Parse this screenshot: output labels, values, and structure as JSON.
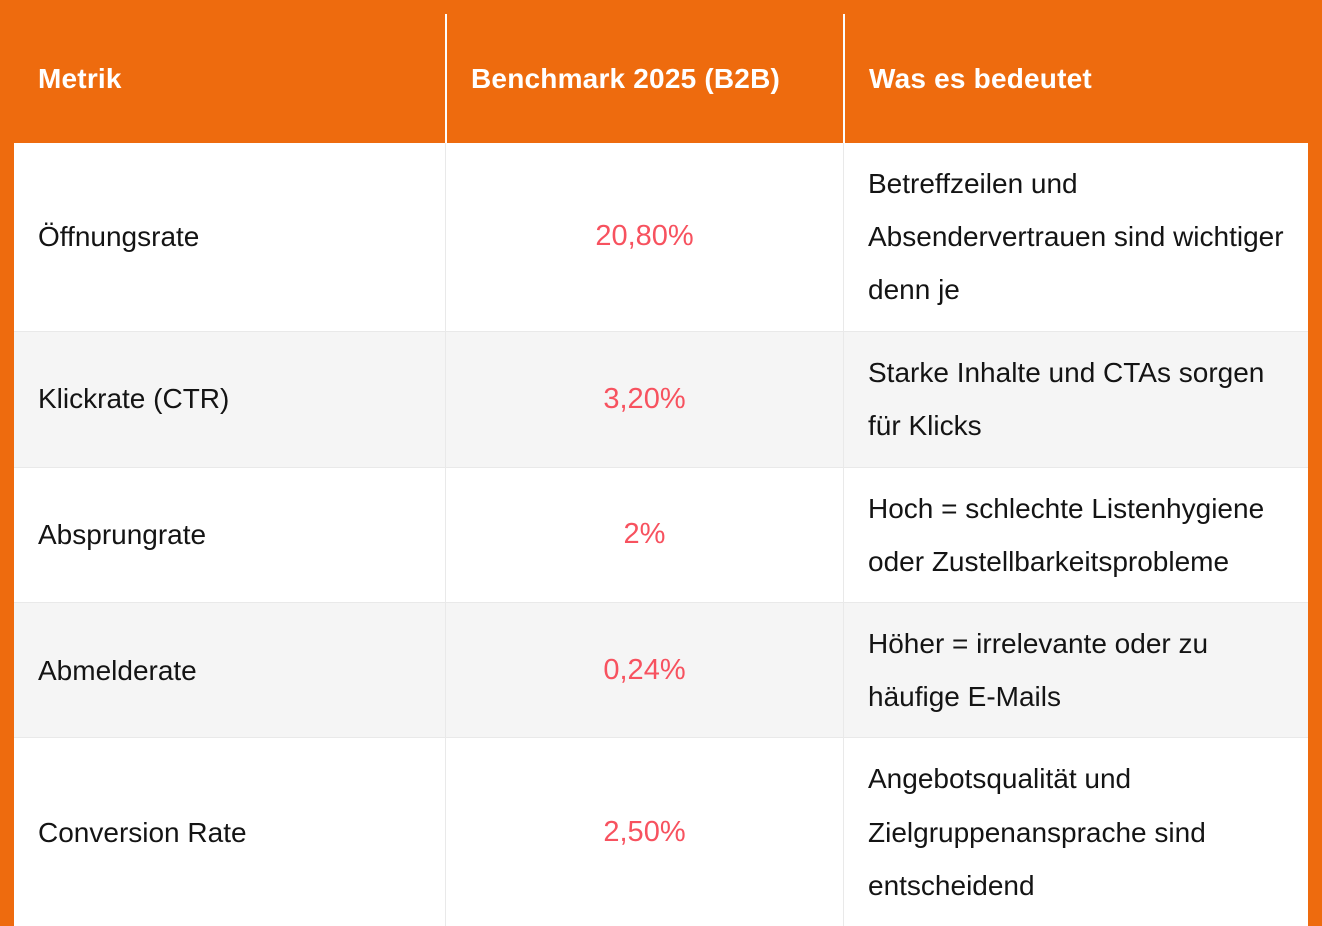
{
  "colors": {
    "frame_orange": "#ee6b0e",
    "header_text": "#ffffff",
    "benchmark_value_text": "#f7525f",
    "body_text": "#141414",
    "row_alt_background": "#f5f5f5",
    "grid_line": "#e9e9e9"
  },
  "chart_data": {
    "type": "table",
    "title": "",
    "columns": [
      "Metrik",
      "Benchmark 2025 (B2B)",
      "Was es bedeutet"
    ],
    "rows": [
      {
        "metric": "Öffnungsrate",
        "benchmark": "20,80%",
        "meaning": "Betreffzeilen und Absendervertrauen sind wichtiger denn je"
      },
      {
        "metric": "Klickrate (CTR)",
        "benchmark": "3,20%",
        "meaning": "Starke Inhalte und CTAs sorgen für Klicks"
      },
      {
        "metric": "Absprungrate",
        "benchmark": "2%",
        "meaning": "Hoch = schlechte Listenhygiene oder Zustellbarkeitsprobleme"
      },
      {
        "metric": "Abmelderate",
        "benchmark": "0,24%",
        "meaning": "Höher = irrelevante oder zu häufige E-Mails"
      },
      {
        "metric": "Conversion Rate",
        "benchmark": "2,50%",
        "meaning": "Angebotsqualität und Zielgruppenansprache sind entscheidend"
      }
    ]
  }
}
